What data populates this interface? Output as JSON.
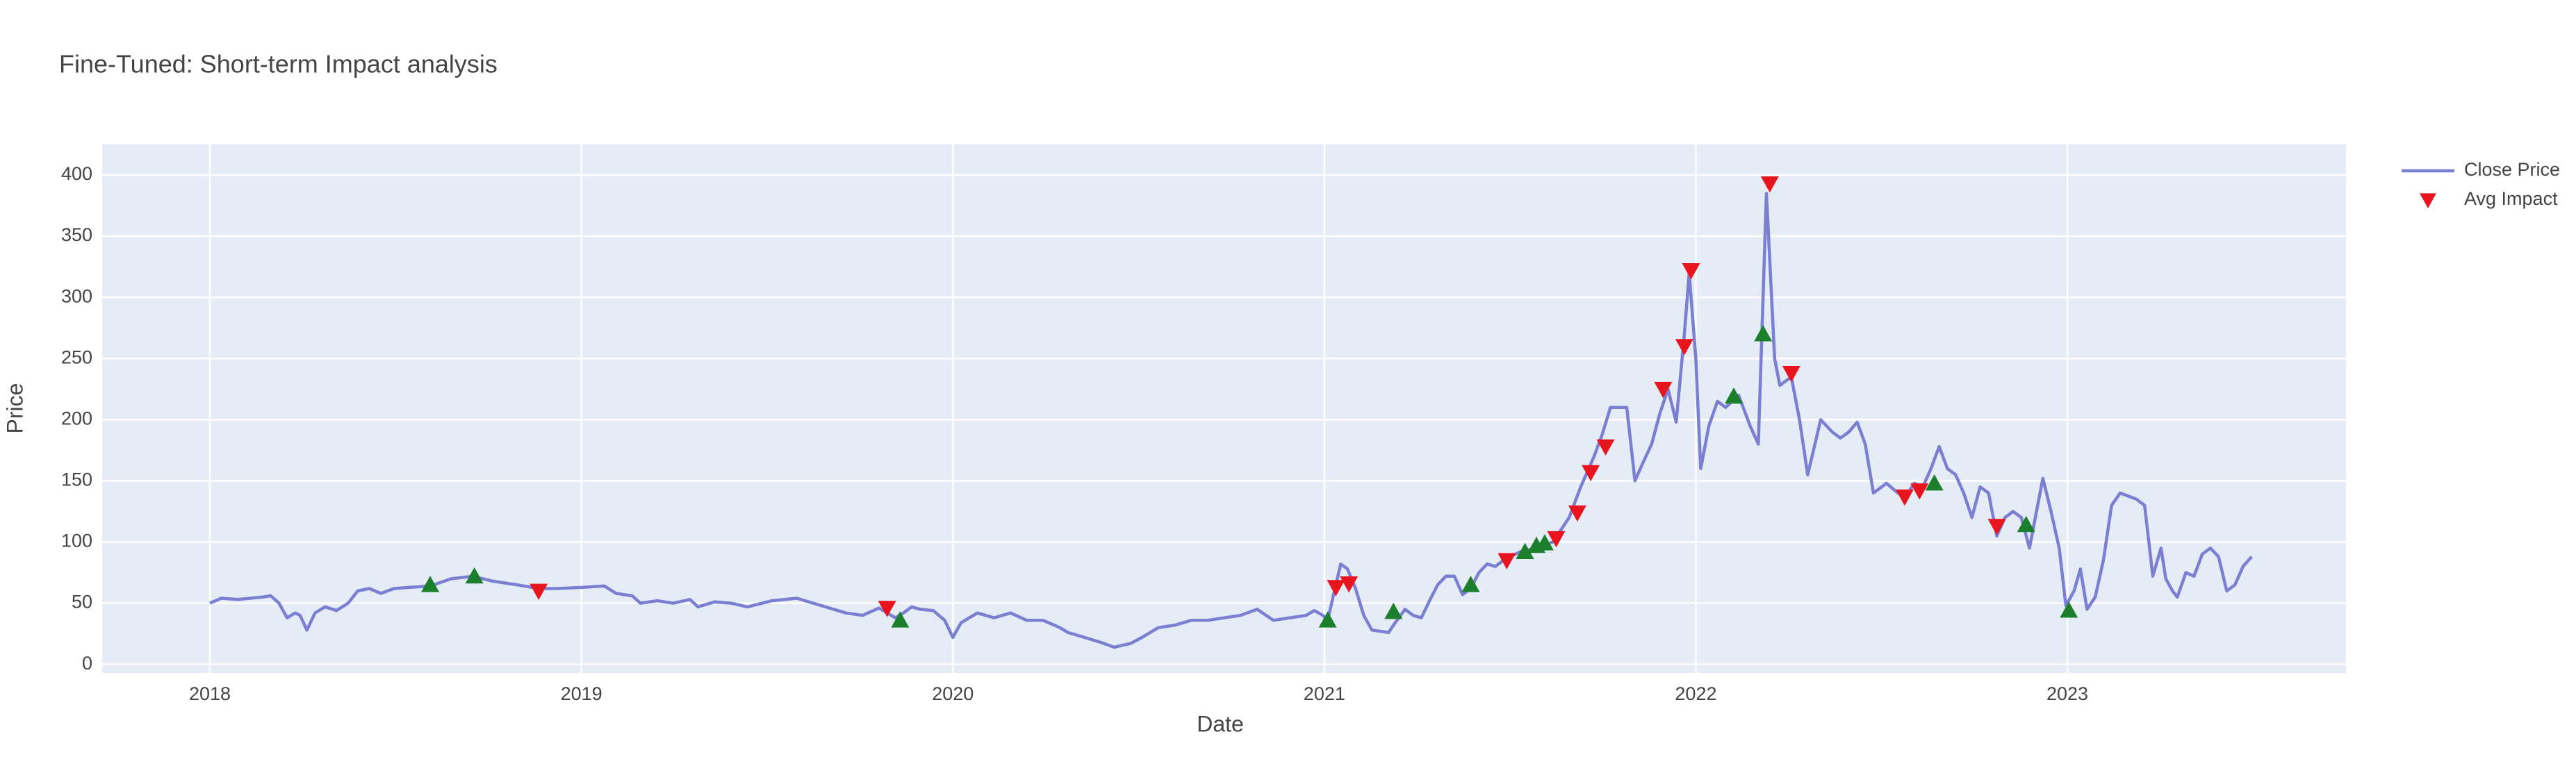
{
  "chart_data": {
    "type": "line",
    "title": "Fine-Tuned: Short-term Impact analysis",
    "x_label": "Date",
    "y_label": "Price",
    "xlim": [
      2017.71,
      2023.75
    ],
    "xticks": [
      2018,
      2019,
      2020,
      2021,
      2022,
      2023
    ],
    "ylim": [
      -7,
      425
    ],
    "yticks": [
      0,
      50,
      100,
      150,
      200,
      250,
      300,
      350,
      400
    ],
    "grid": true,
    "legend": "right",
    "series": [
      {
        "name": "Close Price",
        "mode": "line",
        "color": "#7b7fd2",
        "x": [
          2018.0,
          2018.031,
          2018.075,
          2018.142,
          2018.164,
          2018.186,
          2018.208,
          2018.23,
          2018.243,
          2018.261,
          2018.283,
          2018.31,
          2018.341,
          2018.372,
          2018.398,
          2018.429,
          2018.46,
          2018.496,
          2018.54,
          2018.593,
          2018.65,
          2018.708,
          2018.761,
          2018.827,
          2018.885,
          2018.938,
          2019.004,
          2019.062,
          2019.093,
          2019.137,
          2019.159,
          2019.204,
          2019.248,
          2019.292,
          2019.314,
          2019.358,
          2019.403,
          2019.447,
          2019.513,
          2019.58,
          2019.646,
          2019.69,
          2019.712,
          2019.757,
          2019.801,
          2019.845,
          2019.867,
          2019.889,
          2019.912,
          2019.947,
          2019.978,
          2020.0,
          2020.022,
          2020.066,
          2020.111,
          2020.155,
          2020.199,
          2020.243,
          2020.288,
          2020.31,
          2020.354,
          2020.398,
          2020.434,
          2020.478,
          2020.509,
          2020.553,
          2020.597,
          2020.642,
          2020.686,
          2020.73,
          2020.774,
          2020.819,
          2020.863,
          2020.907,
          2020.951,
          2020.973,
          2020.996,
          2021.009,
          2021.027,
          2021.044,
          2021.062,
          2021.084,
          2021.106,
          2021.128,
          2021.173,
          2021.186,
          2021.217,
          2021.239,
          2021.261,
          2021.283,
          2021.305,
          2021.327,
          2021.35,
          2021.372,
          2021.394,
          2021.416,
          2021.438,
          2021.46,
          2021.482,
          2021.527,
          2021.571,
          2021.615,
          2021.659,
          2021.69,
          2021.726,
          2021.748,
          2021.77,
          2021.814,
          2021.836,
          2021.858,
          2021.881,
          2021.903,
          2021.925,
          2021.947,
          2021.969,
          2021.982,
          2022.0,
          2022.013,
          2022.035,
          2022.058,
          2022.08,
          2022.115,
          2022.146,
          2022.168,
          2022.19,
          2022.212,
          2022.226,
          2022.257,
          2022.279,
          2022.301,
          2022.336,
          2022.367,
          2022.389,
          2022.412,
          2022.434,
          2022.456,
          2022.478,
          2022.513,
          2022.544,
          2022.566,
          2022.588,
          2022.611,
          2022.633,
          2022.655,
          2022.677,
          2022.699,
          2022.721,
          2022.743,
          2022.765,
          2022.788,
          2022.81,
          2022.832,
          2022.854,
          2022.876,
          2022.898,
          2022.92,
          2022.934,
          2022.956,
          2022.978,
          2022.996,
          2023.018,
          2023.035,
          2023.053,
          2023.075,
          2023.097,
          2023.119,
          2023.142,
          2023.186,
          2023.208,
          2023.23,
          2023.252,
          2023.265,
          2023.283,
          2023.296,
          2023.319,
          2023.341,
          2023.363,
          2023.385,
          2023.407,
          2023.429,
          2023.451,
          2023.473,
          2023.496
        ],
        "values": [
          50,
          54,
          53,
          55,
          56,
          50,
          38,
          42,
          40,
          28,
          42,
          47,
          44,
          50,
          60,
          62,
          58,
          62,
          63,
          64,
          70,
          72,
          68,
          65,
          62,
          62,
          63,
          64,
          58,
          56,
          50,
          52,
          50,
          53,
          47,
          51,
          50,
          47,
          52,
          54,
          48,
          44,
          42,
          40,
          46,
          38,
          42,
          47,
          45,
          44,
          36,
          22,
          34,
          42,
          38,
          42,
          36,
          36,
          30,
          26,
          22,
          18,
          14,
          17,
          22,
          30,
          32,
          36,
          36,
          38,
          40,
          45,
          36,
          38,
          40,
          44,
          40,
          36,
          60,
          82,
          78,
          62,
          40,
          28,
          26,
          32,
          45,
          40,
          38,
          52,
          65,
          72,
          72,
          57,
          62,
          75,
          82,
          80,
          85,
          92,
          95,
          100,
          120,
          145,
          170,
          188,
          210,
          210,
          150,
          165,
          180,
          205,
          225,
          198,
          270,
          320,
          250,
          160,
          195,
          215,
          210,
          220,
          195,
          180,
          385,
          250,
          228,
          235,
          200,
          155,
          200,
          190,
          185,
          190,
          198,
          180,
          140,
          148,
          140,
          138,
          148,
          145,
          160,
          178,
          160,
          155,
          140,
          120,
          145,
          140,
          105,
          120,
          125,
          120,
          95,
          130,
          152,
          125,
          95,
          48,
          60,
          78,
          45,
          55,
          85,
          130,
          140,
          135,
          130,
          72,
          95,
          70,
          60,
          55,
          75,
          72,
          90,
          95,
          88,
          60,
          65,
          80,
          88
        ]
      },
      {
        "name": "Avg Impact",
        "mode": "markers",
        "color": "#e8141e",
        "x": [
          2018.593,
          2018.712,
          2018.885,
          2019.823,
          2019.858,
          2021.009,
          2021.031,
          2021.066,
          2021.186,
          2021.394,
          2021.491,
          2021.54,
          2021.571,
          2021.593,
          2021.624,
          2021.681,
          2021.717,
          2021.757,
          2021.912,
          2021.969,
          2021.987,
          2022.102,
          2022.181,
          2022.199,
          2022.257,
          2022.562,
          2022.602,
          2022.642,
          2022.81,
          2022.889,
          2023.004
        ],
        "values": [
          65,
          72,
          60,
          46,
          36,
          36,
          63,
          66,
          43,
          65,
          85,
          92,
          97,
          99,
          103,
          124,
          157,
          178,
          225,
          260,
          322,
          219,
          270,
          393,
          238,
          137,
          142,
          148,
          113,
          114,
          44
        ],
        "colors": [
          "#1c7f2c",
          "#1c7f2c",
          "#e8141e",
          "#e8141e",
          "#1c7f2c",
          "#1c7f2c",
          "#e8141e",
          "#e8141e",
          "#1c7f2c",
          "#1c7f2c",
          "#e8141e",
          "#1c7f2c",
          "#1c7f2c",
          "#1c7f2c",
          "#e8141e",
          "#e8141e",
          "#e8141e",
          "#e8141e",
          "#e8141e",
          "#e8141e",
          "#e8141e",
          "#1c7f2c",
          "#1c7f2c",
          "#e8141e",
          "#e8141e",
          "#e8141e",
          "#e8141e",
          "#1c7f2c",
          "#e8141e",
          "#1c7f2c",
          "#1c7f2c"
        ],
        "symbols": [
          "triangle-up",
          "triangle-up",
          "triangle-down",
          "triangle-down",
          "triangle-up",
          "triangle-up",
          "triangle-down",
          "triangle-down",
          "triangle-up",
          "triangle-up",
          "triangle-down",
          "triangle-up",
          "triangle-up",
          "triangle-up",
          "triangle-down",
          "triangle-down",
          "triangle-down",
          "triangle-down",
          "triangle-down",
          "triangle-down",
          "triangle-down",
          "triangle-up",
          "triangle-up",
          "triangle-down",
          "triangle-down",
          "triangle-down",
          "triangle-down",
          "triangle-up",
          "triangle-down",
          "triangle-up",
          "triangle-up"
        ]
      }
    ]
  }
}
